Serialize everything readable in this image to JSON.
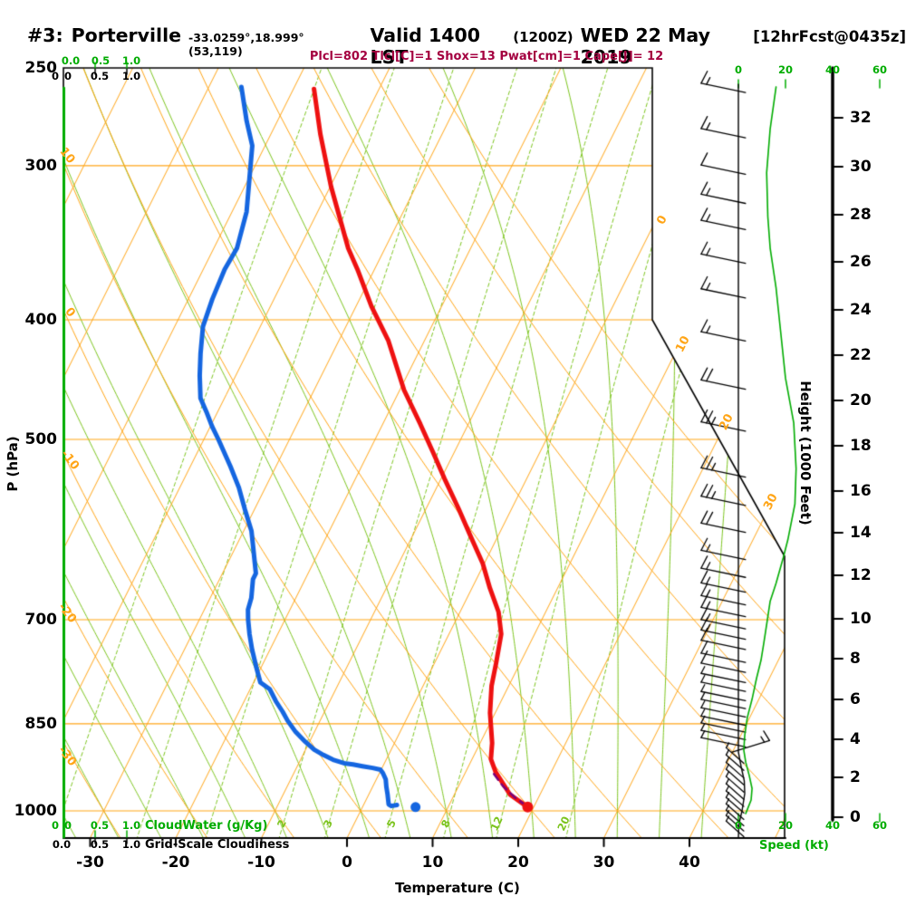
{
  "header": {
    "station_prefix": "#3:",
    "station_name": "Porterville",
    "coords": "-33.0259°,18.999° (53,119)",
    "valid_label": "Valid 1400 LST",
    "valid_zulu": "(1200Z)",
    "valid_date": "WED 22 May 2019",
    "forecast_tag": "[12hrFcst@0435z]",
    "indices_line": "Plcl=802 Tlcl[C]=1 Shox=13 Pwat[cm]=1 Cape[J]= 12"
  },
  "axis_titles": {
    "pressure": "P (hPa)",
    "temperature": "Temperature (C)",
    "height": "Height (1000 Feet)",
    "speed": "Speed (kt)",
    "cloudwater": "CloudWater (g/Kg)",
    "cloudiness": "Grid-Scale Cloudiness"
  },
  "colors": {
    "orange": "#FFA517",
    "light_green": "#7CC41E",
    "bright_green": "#00AC00",
    "red": "#EE1111",
    "blue": "#1566E0",
    "purple": "#7A007A",
    "maroon": "#A40040",
    "black": "#000000"
  },
  "chart_data": {
    "type": "line",
    "title": "#3: Porterville Valid 1400 LST (1200Z) WED 22 May 2019 [12hrFcst@0435z]",
    "xlabel": "Temperature (C)",
    "ylabel": "P (hPa)",
    "pressure_ticks": [
      250,
      300,
      400,
      500,
      700,
      850,
      1000
    ],
    "temperature_ticks": [
      -30,
      -20,
      -10,
      0,
      10,
      20,
      30,
      40
    ],
    "speed_ticks": [
      0,
      20,
      40,
      60
    ],
    "cloud_scale_green": [
      "0.0",
      "0.5",
      "1.0"
    ],
    "cloud_scale_black": [
      "0.0",
      "0.5",
      "1.0"
    ],
    "height_ticks_ft_y": [
      [
        0,
        902
      ],
      [
        2,
        858
      ],
      [
        4,
        816
      ],
      [
        6,
        772
      ],
      [
        8,
        727
      ],
      [
        10,
        683
      ],
      [
        12,
        635
      ],
      [
        14,
        588
      ],
      [
        16,
        542
      ],
      [
        18,
        492
      ],
      [
        20,
        442
      ],
      [
        22,
        392
      ],
      [
        24,
        342
      ],
      [
        26,
        289
      ],
      [
        28,
        237
      ],
      [
        30,
        184
      ],
      [
        32,
        130
      ]
    ],
    "grid": {
      "isotherms_c": {
        "start": -110,
        "end": 50,
        "step": 10
      },
      "dry_adiabats_c": [
        -40,
        -30,
        -20,
        -10,
        0,
        10,
        20,
        30,
        40,
        50,
        60,
        70,
        80
      ],
      "moist_adiabats_c": [
        -35,
        -30,
        -25,
        -20,
        -15,
        -10,
        -5,
        0,
        5,
        10,
        15,
        20,
        25,
        30,
        35,
        40
      ],
      "mixing_ratio_gkg": [
        0.2,
        0.5,
        1,
        2,
        3,
        5,
        8,
        12,
        20
      ],
      "mixing_ratio_labels": [
        [
          2,
          311
        ],
        [
          3,
          362
        ],
        [
          5,
          432
        ],
        [
          8,
          492
        ],
        [
          12,
          548
        ],
        [
          20,
          622
        ]
      ],
      "dry_adiabat_edge_labels": [
        [
          10,
          74,
          172
        ],
        [
          0,
          77,
          345
        ],
        [
          -10,
          77,
          508
        ],
        [
          -20,
          74,
          677
        ],
        [
          -30,
          74,
          835
        ]
      ],
      "isotherm_edge_labels": [
        [
          0,
          731,
          243
        ],
        [
          10,
          754,
          380
        ],
        [
          20,
          802,
          466
        ],
        [
          30,
          851,
          554
        ]
      ]
    },
    "temperature_profile_pT": [
      [
        260,
        -47.6
      ],
      [
        283,
        -44.2
      ],
      [
        312,
        -39.9
      ],
      [
        350,
        -34.3
      ],
      [
        364,
        -32.0
      ],
      [
        390,
        -28.2
      ],
      [
        416,
        -24.2
      ],
      [
        456,
        -19.5
      ],
      [
        486,
        -15.6
      ],
      [
        512,
        -12.5
      ],
      [
        538,
        -9.6
      ],
      [
        569,
        -6.2
      ],
      [
        601,
        -3.0
      ],
      [
        630,
        -0.2
      ],
      [
        660,
        2.1
      ],
      [
        690,
        4.5
      ],
      [
        719,
        6.1
      ],
      [
        759,
        7.2
      ],
      [
        792,
        8.0
      ],
      [
        833,
        9.4
      ],
      [
        881,
        11.4
      ],
      [
        908,
        12.2
      ],
      [
        930,
        13.5
      ],
      [
        970,
        16.5
      ],
      [
        993,
        19.3
      ]
    ],
    "dewpoint_profile_pT": [
      [
        259,
        -56.2
      ],
      [
        276,
        -53.6
      ],
      [
        289,
        -51.5
      ],
      [
        327,
        -48.3
      ],
      [
        350,
        -47.3
      ],
      [
        364,
        -47.5
      ],
      [
        385,
        -47.2
      ],
      [
        405,
        -46.7
      ],
      [
        426,
        -45.4
      ],
      [
        444,
        -44.2
      ],
      [
        463,
        -42.8
      ],
      [
        475,
        -41.3
      ],
      [
        488,
        -39.8
      ],
      [
        500,
        -38.3
      ],
      [
        526,
        -35.3
      ],
      [
        547,
        -33.1
      ],
      [
        570,
        -31.1
      ],
      [
        593,
        -29.1
      ],
      [
        617,
        -27.6
      ],
      [
        642,
        -26.1
      ],
      [
        649,
        -26.1
      ],
      [
        672,
        -25.2
      ],
      [
        687,
        -24.9
      ],
      [
        700,
        -24.3
      ],
      [
        719,
        -23.3
      ],
      [
        740,
        -22.1
      ],
      [
        766,
        -20.5
      ],
      [
        787,
        -19.2
      ],
      [
        797,
        -17.7
      ],
      [
        815,
        -16.3
      ],
      [
        831,
        -14.9
      ],
      [
        845,
        -13.8
      ],
      [
        863,
        -12.2
      ],
      [
        879,
        -10.5
      ],
      [
        892,
        -9.0
      ],
      [
        901,
        -7.6
      ],
      [
        909,
        -6.2
      ],
      [
        915,
        -4.7
      ],
      [
        917,
        -3.6
      ],
      [
        920,
        -2.4
      ],
      [
        923,
        -1.1
      ],
      [
        926,
        -0.1
      ],
      [
        932,
        0.4
      ],
      [
        943,
        1.1
      ],
      [
        956,
        1.6
      ],
      [
        970,
        2.2
      ],
      [
        988,
        2.9
      ],
      [
        991,
        3.3
      ],
      [
        989,
        3.9
      ]
    ],
    "parcel_path_pT": [
      [
        990,
        19.0
      ],
      [
        975,
        17.2
      ],
      [
        955,
        15.2
      ],
      [
        932,
        13.3
      ]
    ],
    "surface_temp_dot_pT": [
      993,
      19.3
    ],
    "surface_dewpoint_dot_pT": [
      993,
      6.2
    ],
    "wind_speed_profile_pkt": [
      [
        259,
        16
      ],
      [
        280,
        13.5
      ],
      [
        304,
        12
      ],
      [
        330,
        12.5
      ],
      [
        350,
        13.5
      ],
      [
        377,
        16
      ],
      [
        410,
        18
      ],
      [
        446,
        20
      ],
      [
        485,
        23.5
      ],
      [
        528,
        24.5
      ],
      [
        564,
        24
      ],
      [
        603,
        21
      ],
      [
        624,
        19
      ],
      [
        654,
        16
      ],
      [
        676,
        13.5
      ],
      [
        700,
        12.3
      ],
      [
        731,
        10.8
      ],
      [
        755,
        9.6
      ],
      [
        781,
        7.7
      ],
      [
        812,
        5.8
      ],
      [
        840,
        3.8
      ],
      [
        868,
        2.7
      ],
      [
        893,
        2.3
      ],
      [
        913,
        3.1
      ],
      [
        936,
        4.6
      ],
      [
        959,
        5.8
      ],
      [
        980,
        5.4
      ],
      [
        993,
        4.2
      ],
      [
        1005,
        3.1
      ]
    ],
    "wind_barbs_p_kt": [
      [
        261,
        15
      ],
      [
        284,
        14
      ],
      [
        304,
        12
      ],
      [
        321,
        13
      ],
      [
        337,
        13
      ],
      [
        359,
        15
      ],
      [
        383,
        17
      ],
      [
        415,
        19
      ],
      [
        454,
        21
      ],
      [
        491,
        23
      ],
      [
        535,
        25
      ],
      [
        564,
        24
      ],
      [
        593,
        21
      ],
      [
        624,
        19
      ],
      [
        645,
        17
      ],
      [
        663,
        16
      ],
      [
        679,
        15
      ],
      [
        694,
        14
      ],
      [
        710,
        13
      ],
      [
        724,
        13
      ],
      [
        738,
        12
      ],
      [
        756,
        11
      ],
      [
        770,
        10
      ],
      [
        785,
        9
      ],
      [
        798,
        8
      ],
      [
        812,
        7
      ],
      [
        824,
        6
      ],
      [
        837,
        5
      ],
      [
        850,
        5
      ],
      [
        861,
        4
      ],
      [
        873,
        4
      ],
      [
        885,
        3
      ]
    ],
    "wind_barb_special_right_p_kt": [
      893,
      13
    ],
    "wind_barbs_surface_cluster_p_kt": [
      [
        907,
        5
      ],
      [
        919,
        5
      ],
      [
        932,
        4
      ],
      [
        944,
        4
      ],
      [
        957,
        4
      ],
      [
        970,
        3
      ],
      [
        983,
        3
      ],
      [
        995,
        3
      ],
      [
        1007,
        3
      ],
      [
        1019,
        2
      ],
      [
        1029,
        2
      ],
      [
        1040,
        2
      ]
    ]
  }
}
